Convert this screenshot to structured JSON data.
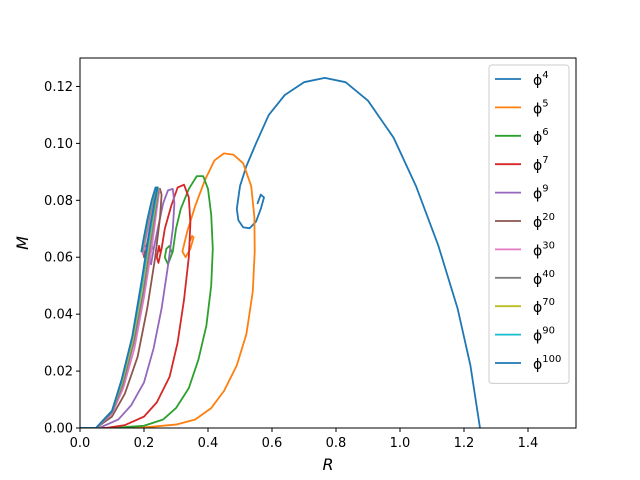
{
  "chart_data": {
    "type": "line",
    "title": "",
    "xlabel": "R",
    "ylabel": "M",
    "xlim": [
      0,
      1.55
    ],
    "ylim": [
      0,
      0.13
    ],
    "x_ticks": [
      "0.0",
      "0.2",
      "0.4",
      "0.6",
      "0.8",
      "1.0",
      "1.2",
      "1.4"
    ],
    "y_ticks": [
      "0.00",
      "0.02",
      "0.04",
      "0.06",
      "0.08",
      "0.10",
      "0.12"
    ],
    "grid": false,
    "legend_position": "top-right",
    "series": [
      {
        "name": "ϕ",
        "exp": "4",
        "color": "#1f77b4",
        "points": [
          [
            1.25,
            0
          ],
          [
            1.22,
            0.022
          ],
          [
            1.18,
            0.042
          ],
          [
            1.12,
            0.064
          ],
          [
            1.05,
            0.085
          ],
          [
            0.98,
            0.102
          ],
          [
            0.9,
            0.115
          ],
          [
            0.83,
            0.1215
          ],
          [
            0.765,
            0.123
          ],
          [
            0.7,
            0.1215
          ],
          [
            0.64,
            0.117
          ],
          [
            0.59,
            0.11
          ],
          [
            0.55,
            0.1
          ],
          [
            0.52,
            0.092
          ],
          [
            0.5,
            0.085
          ],
          [
            0.49,
            0.077
          ],
          [
            0.495,
            0.073
          ],
          [
            0.51,
            0.0705
          ],
          [
            0.53,
            0.0702
          ],
          [
            0.55,
            0.0725
          ],
          [
            0.565,
            0.077
          ],
          [
            0.575,
            0.081
          ],
          [
            0.565,
            0.082
          ],
          [
            0.555,
            0.079
          ]
        ]
      },
      {
        "name": "ϕ",
        "exp": "5",
        "color": "#ff7f0e",
        "points": [
          [
            0.0,
            0
          ],
          [
            0.1,
            0.0
          ],
          [
            0.2,
            0.0002
          ],
          [
            0.3,
            0.0012
          ],
          [
            0.36,
            0.003
          ],
          [
            0.41,
            0.007
          ],
          [
            0.45,
            0.013
          ],
          [
            0.49,
            0.022
          ],
          [
            0.52,
            0.033
          ],
          [
            0.54,
            0.048
          ],
          [
            0.546,
            0.062
          ],
          [
            0.545,
            0.074
          ],
          [
            0.535,
            0.085
          ],
          [
            0.51,
            0.093
          ],
          [
            0.48,
            0.096
          ],
          [
            0.45,
            0.0965
          ],
          [
            0.42,
            0.094
          ],
          [
            0.39,
            0.087
          ],
          [
            0.36,
            0.078
          ],
          [
            0.335,
            0.069
          ],
          [
            0.32,
            0.062
          ],
          [
            0.33,
            0.06
          ],
          [
            0.345,
            0.063
          ],
          [
            0.355,
            0.067
          ],
          [
            0.35,
            0.0675
          ],
          [
            0.345,
            0.066
          ]
        ]
      },
      {
        "name": "ϕ",
        "exp": "6",
        "color": "#2ca02c",
        "points": [
          [
            0.0,
            0
          ],
          [
            0.1,
            0.0
          ],
          [
            0.2,
            0.0008
          ],
          [
            0.26,
            0.003
          ],
          [
            0.3,
            0.007
          ],
          [
            0.34,
            0.014
          ],
          [
            0.37,
            0.024
          ],
          [
            0.395,
            0.036
          ],
          [
            0.41,
            0.05
          ],
          [
            0.415,
            0.063
          ],
          [
            0.41,
            0.075
          ],
          [
            0.4,
            0.084
          ],
          [
            0.385,
            0.0885
          ],
          [
            0.365,
            0.0885
          ],
          [
            0.34,
            0.084
          ],
          [
            0.315,
            0.077
          ],
          [
            0.3,
            0.07
          ],
          [
            0.29,
            0.062
          ],
          [
            0.275,
            0.0575
          ],
          [
            0.265,
            0.06
          ],
          [
            0.27,
            0.063
          ],
          [
            0.28,
            0.064
          ],
          [
            0.285,
            0.062
          ]
        ]
      },
      {
        "name": "ϕ",
        "exp": "7",
        "color": "#d62728",
        "points": [
          [
            0.0,
            0
          ],
          [
            0.08,
            0.0
          ],
          [
            0.14,
            0.001
          ],
          [
            0.2,
            0.004
          ],
          [
            0.24,
            0.009
          ],
          [
            0.28,
            0.018
          ],
          [
            0.305,
            0.03
          ],
          [
            0.325,
            0.045
          ],
          [
            0.34,
            0.06
          ],
          [
            0.345,
            0.072
          ],
          [
            0.34,
            0.081
          ],
          [
            0.325,
            0.0855
          ],
          [
            0.305,
            0.0845
          ],
          [
            0.285,
            0.078
          ],
          [
            0.265,
            0.07
          ],
          [
            0.255,
            0.063
          ],
          [
            0.245,
            0.058
          ],
          [
            0.24,
            0.06
          ],
          [
            0.247,
            0.064
          ],
          [
            0.25,
            0.062
          ]
        ]
      },
      {
        "name": "ϕ",
        "exp": "9",
        "color": "#9467bd",
        "points": [
          [
            0.0,
            0
          ],
          [
            0.06,
            0.0
          ],
          [
            0.12,
            0.003
          ],
          [
            0.16,
            0.008
          ],
          [
            0.2,
            0.016
          ],
          [
            0.23,
            0.028
          ],
          [
            0.255,
            0.042
          ],
          [
            0.275,
            0.057
          ],
          [
            0.29,
            0.07
          ],
          [
            0.295,
            0.079
          ],
          [
            0.29,
            0.084
          ],
          [
            0.275,
            0.0835
          ],
          [
            0.26,
            0.079
          ],
          [
            0.245,
            0.071
          ],
          [
            0.232,
            0.064
          ],
          [
            0.222,
            0.0575
          ],
          [
            0.218,
            0.06
          ],
          [
            0.224,
            0.064
          ],
          [
            0.23,
            0.0625
          ]
        ]
      },
      {
        "name": "ϕ",
        "exp": "20",
        "color": "#8c564b",
        "points": [
          [
            0.0,
            0
          ],
          [
            0.05,
            0.0
          ],
          [
            0.1,
            0.004
          ],
          [
            0.14,
            0.012
          ],
          [
            0.18,
            0.025
          ],
          [
            0.21,
            0.042
          ],
          [
            0.235,
            0.06
          ],
          [
            0.25,
            0.074
          ],
          [
            0.255,
            0.082
          ],
          [
            0.25,
            0.084
          ],
          [
            0.24,
            0.08
          ],
          [
            0.225,
            0.073
          ],
          [
            0.212,
            0.066
          ],
          [
            0.2,
            0.06
          ],
          [
            0.198,
            0.063
          ],
          [
            0.204,
            0.064
          ]
        ]
      },
      {
        "name": "ϕ",
        "exp": "30",
        "color": "#e377c2",
        "points": [
          [
            0.0,
            0
          ],
          [
            0.05,
            0.0
          ],
          [
            0.1,
            0.005
          ],
          [
            0.135,
            0.014
          ],
          [
            0.17,
            0.028
          ],
          [
            0.2,
            0.046
          ],
          [
            0.225,
            0.064
          ],
          [
            0.24,
            0.077
          ],
          [
            0.248,
            0.0835
          ],
          [
            0.243,
            0.0845
          ],
          [
            0.232,
            0.08
          ],
          [
            0.218,
            0.073
          ],
          [
            0.205,
            0.066
          ],
          [
            0.196,
            0.061
          ],
          [
            0.199,
            0.064
          ],
          [
            0.205,
            0.063
          ]
        ]
      },
      {
        "name": "ϕ",
        "exp": "40",
        "color": "#7f7f7f",
        "points": [
          [
            0.0,
            0
          ],
          [
            0.05,
            0.0
          ],
          [
            0.1,
            0.0055
          ],
          [
            0.133,
            0.015
          ],
          [
            0.168,
            0.03
          ],
          [
            0.198,
            0.048
          ],
          [
            0.222,
            0.066
          ],
          [
            0.238,
            0.078
          ],
          [
            0.246,
            0.084
          ],
          [
            0.24,
            0.0845
          ],
          [
            0.228,
            0.08
          ],
          [
            0.214,
            0.073
          ],
          [
            0.202,
            0.066
          ],
          [
            0.195,
            0.062
          ],
          [
            0.198,
            0.064
          ]
        ]
      },
      {
        "name": "ϕ",
        "exp": "70",
        "color": "#bcbd22",
        "points": [
          [
            0.0,
            0
          ],
          [
            0.05,
            0.0
          ],
          [
            0.1,
            0.006
          ],
          [
            0.131,
            0.016
          ],
          [
            0.165,
            0.031
          ],
          [
            0.195,
            0.05
          ],
          [
            0.22,
            0.068
          ],
          [
            0.236,
            0.079
          ],
          [
            0.244,
            0.0845
          ],
          [
            0.238,
            0.0845
          ],
          [
            0.226,
            0.08
          ],
          [
            0.212,
            0.073
          ],
          [
            0.2,
            0.066
          ],
          [
            0.194,
            0.062
          ],
          [
            0.197,
            0.064
          ]
        ]
      },
      {
        "name": "ϕ",
        "exp": "90",
        "color": "#17becf",
        "points": [
          [
            0.0,
            0
          ],
          [
            0.05,
            0.0
          ],
          [
            0.1,
            0.006
          ],
          [
            0.13,
            0.0165
          ],
          [
            0.164,
            0.032
          ],
          [
            0.194,
            0.051
          ],
          [
            0.219,
            0.069
          ],
          [
            0.235,
            0.0795
          ],
          [
            0.243,
            0.0845
          ],
          [
            0.237,
            0.0845
          ],
          [
            0.225,
            0.08
          ],
          [
            0.211,
            0.073
          ],
          [
            0.199,
            0.066
          ],
          [
            0.193,
            0.062
          ],
          [
            0.196,
            0.064
          ]
        ]
      },
      {
        "name": "ϕ",
        "exp": "100",
        "color": "#1f77b4",
        "points": [
          [
            0.0,
            0
          ],
          [
            0.05,
            0.0
          ],
          [
            0.1,
            0.006
          ],
          [
            0.13,
            0.017
          ],
          [
            0.163,
            0.032
          ],
          [
            0.193,
            0.052
          ],
          [
            0.218,
            0.07
          ],
          [
            0.234,
            0.08
          ],
          [
            0.242,
            0.0845
          ],
          [
            0.236,
            0.0845
          ],
          [
            0.224,
            0.08
          ],
          [
            0.21,
            0.073
          ],
          [
            0.198,
            0.066
          ],
          [
            0.192,
            0.062
          ],
          [
            0.195,
            0.064
          ]
        ]
      }
    ]
  }
}
